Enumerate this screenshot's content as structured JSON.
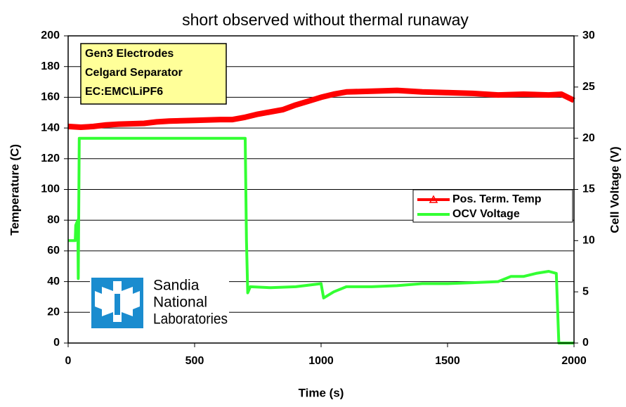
{
  "chart_data": {
    "type": "line",
    "title": "short observed without thermal runaway",
    "x_label": "Time (s)",
    "y_label": "Temperature (C)",
    "y2_label": "Cell Voltage (V)",
    "annotation": [
      "Gen3 Electrodes",
      "Celgard Separator",
      "EC:EMC\\LiPF6"
    ],
    "logo": [
      "Sandia",
      "National",
      "Laboratories"
    ],
    "xlim": [
      0,
      2000
    ],
    "xticks": [
      0,
      500,
      1000,
      1500,
      2000
    ],
    "ylim": [
      0,
      200
    ],
    "yticks": [
      0,
      20,
      40,
      60,
      80,
      100,
      120,
      140,
      160,
      180,
      200
    ],
    "y2lim": [
      0,
      30
    ],
    "y2ticks": [
      0,
      5,
      10,
      15,
      20,
      25,
      30
    ],
    "grid": true,
    "legend": "right",
    "series": [
      {
        "name": "Pos. Term. Temp",
        "color": "#ff0000",
        "x": [
          0,
          50,
          100,
          150,
          200,
          300,
          350,
          400,
          500,
          600,
          650,
          700,
          750,
          800,
          850,
          900,
          950,
          1000,
          1050,
          1100,
          1200,
          1300,
          1400,
          1500,
          1600,
          1700,
          1800,
          1900,
          1950,
          2000
        ],
        "values": [
          141,
          140.5,
          141,
          142,
          142.5,
          143,
          144,
          144.5,
          145,
          145.5,
          145.5,
          147,
          149,
          150.5,
          152,
          155,
          157.5,
          160,
          162,
          163.5,
          164,
          164.5,
          163.5,
          163,
          162.5,
          161.5,
          162,
          161.5,
          162,
          158
        ]
      },
      {
        "name": "OCV Voltage",
        "color": "#33ff33",
        "axis": "y2",
        "x": [
          0,
          28,
          30,
          38,
          40,
          44,
          100,
          700,
          705,
          710,
          720,
          800,
          900,
          1000,
          1010,
          1050,
          1100,
          1200,
          1300,
          1400,
          1500,
          1600,
          1700,
          1750,
          1800,
          1850,
          1900,
          1930,
          1940,
          2000
        ],
        "values": [
          10,
          10,
          11.5,
          12,
          6.3,
          20,
          20,
          20,
          10,
          4.9,
          5.5,
          5.4,
          5.5,
          5.8,
          4.4,
          5,
          5.5,
          5.5,
          5.6,
          5.8,
          5.8,
          5.9,
          6,
          6.5,
          6.5,
          6.8,
          7,
          6.8,
          0,
          0
        ]
      }
    ]
  }
}
